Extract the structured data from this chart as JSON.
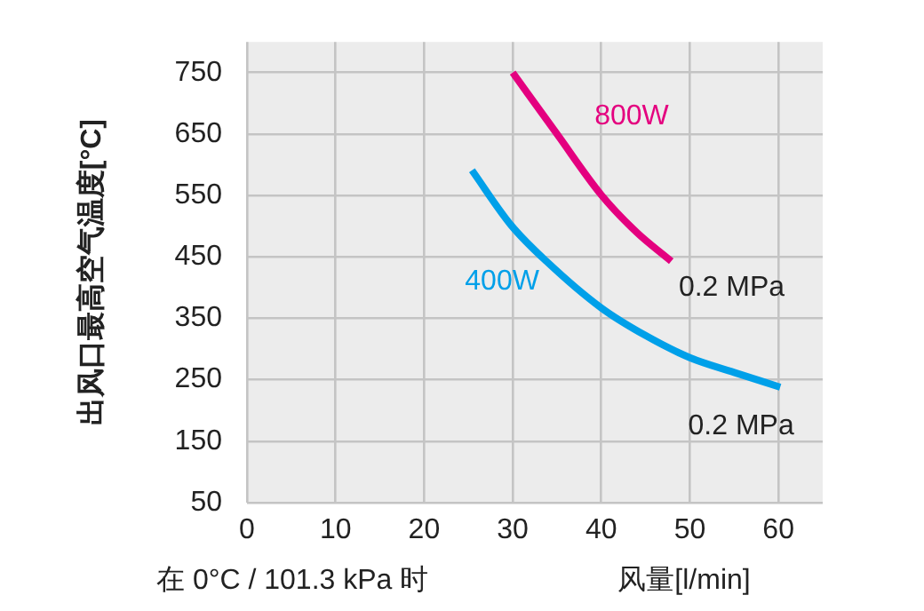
{
  "chart_data": {
    "type": "line",
    "xlabel": "风量[l/min]",
    "ylabel": "出风口最高空气温度[°C]",
    "xlim": [
      0,
      65
    ],
    "xticks": [
      0,
      10,
      20,
      30,
      40,
      50,
      60
    ],
    "ylim": [
      50,
      800
    ],
    "yticks": [
      50,
      150,
      250,
      350,
      450,
      550,
      650,
      750
    ],
    "grid": true,
    "legend": false,
    "marker": "none",
    "line_style": "solid",
    "series": [
      {
        "name": "800W",
        "color": "#e4007f",
        "x": [
          30,
          35,
          40,
          44,
          47.9
        ],
        "values": [
          750,
          650,
          551,
          490,
          443
        ]
      },
      {
        "name": "400W",
        "color": "#00a0e9",
        "x": [
          25.4,
          29.8,
          33.8,
          40,
          45,
          50,
          55,
          60.2
        ],
        "values": [
          591,
          502,
          443,
          367,
          322,
          286,
          262,
          238
        ]
      }
    ],
    "annotations": [
      {
        "text": "0.2 MPa",
        "x": 47.9,
        "y": 443
      },
      {
        "text": "0.2 MPa",
        "x": 60.2,
        "y": 238
      },
      "在 0°C / 101.3 kPa 时"
    ]
  }
}
